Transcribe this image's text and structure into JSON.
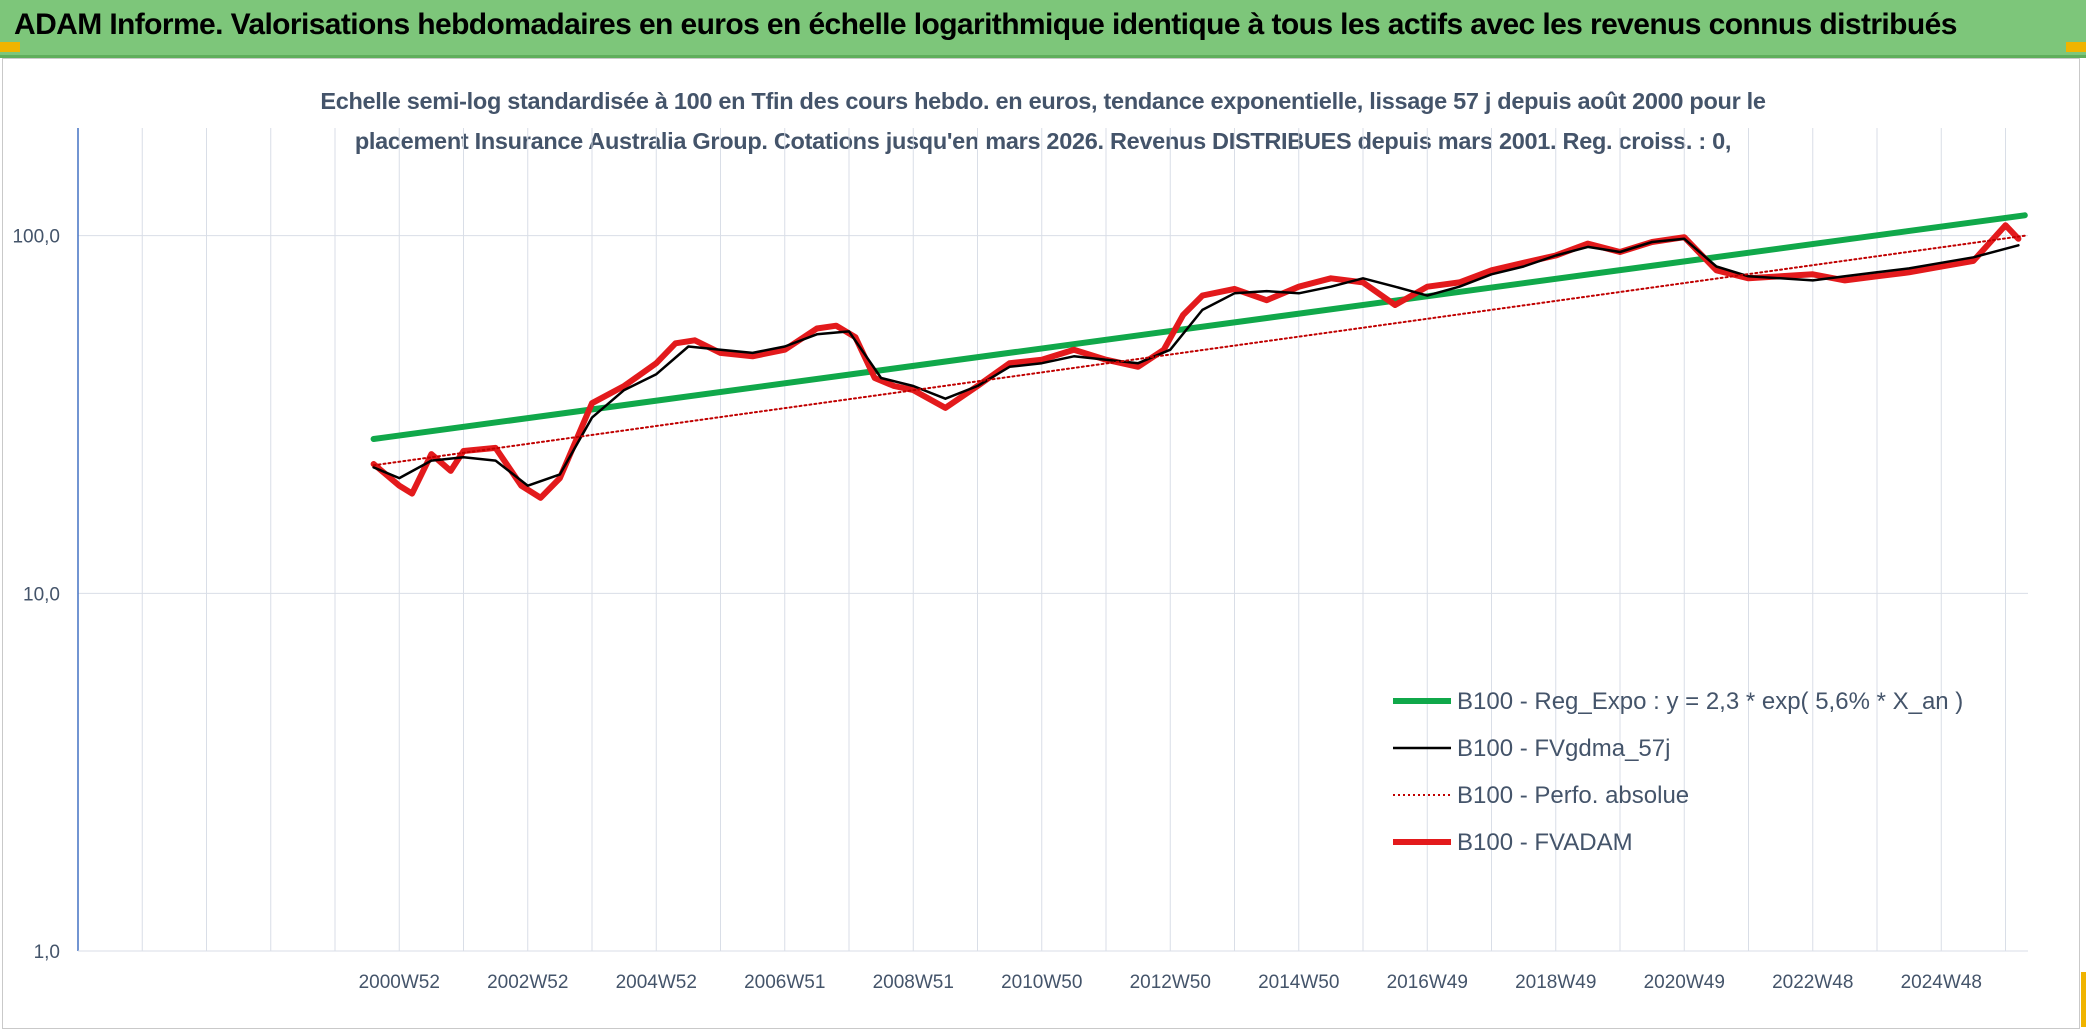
{
  "header": {
    "title": "ADAM Informe. Valorisations hebdomadaires en euros en échelle logarithmique identique à tous les actifs avec les revenus connus distribués"
  },
  "chart_data": {
    "type": "line",
    "subtitle_line1": "Echelle semi-log standardisée à 100 en Tfin des cours hebdo. en euros, tendance exponentielle, lissage 57 j depuis août 2000 pour le",
    "subtitle_line2": "placement Insurance Australia Group. Cotations jusqu'en mars 2026. Revenus DISTRIBUES depuis mars 2001. Reg. croiss. : 0,",
    "y_scale": "log",
    "ylim": [
      1,
      200
    ],
    "y_ticks": [
      {
        "value": 1,
        "label": "1,0"
      },
      {
        "value": 10,
        "label": "10,0"
      },
      {
        "value": 100,
        "label": "100,0"
      }
    ],
    "x_tick_labels": [
      "2000W52",
      "2002W52",
      "2004W52",
      "2006W51",
      "2008W51",
      "2010W50",
      "2012W50",
      "2014W50",
      "2016W49",
      "2018W49",
      "2020W49",
      "2022W48",
      "2024W48"
    ],
    "x_tick_years": [
      2001,
      2003,
      2005,
      2007,
      2009,
      2011,
      2013,
      2015,
      2017,
      2019,
      2021,
      2023,
      2025
    ],
    "xlim": [
      1996.0,
      2026.35
    ],
    "grid": true,
    "legend_position": "bottom-right",
    "series": [
      {
        "name": "B100 - Reg_Expo : y = 2,3 * exp( 5,6% *  X_an )",
        "color": "#10a84a",
        "style": "solid-thick",
        "x": [
          2000.6,
          2026.3
        ],
        "y": [
          27.0,
          114.0
        ]
      },
      {
        "name": "B100 - FVgdma_57j",
        "color": "#000000",
        "style": "solid",
        "x": [
          2000.6,
          2001.0,
          2001.5,
          2002.0,
          2002.5,
          2003.0,
          2003.5,
          2004.0,
          2004.5,
          2005.0,
          2005.5,
          2006.0,
          2006.5,
          2007.0,
          2007.5,
          2008.0,
          2008.5,
          2009.0,
          2009.5,
          2010.0,
          2010.5,
          2011.0,
          2011.5,
          2012.0,
          2012.5,
          2013.0,
          2013.5,
          2014.0,
          2014.5,
          2015.0,
          2015.5,
          2016.0,
          2016.5,
          2017.0,
          2017.5,
          2018.0,
          2018.5,
          2019.0,
          2019.5,
          2020.0,
          2020.5,
          2021.0,
          2021.5,
          2022.0,
          2022.5,
          2023.0,
          2023.5,
          2024.0,
          2024.5,
          2025.0,
          2025.5,
          2026.2
        ],
        "y": [
          22.5,
          21.0,
          23.5,
          24.0,
          23.5,
          20.0,
          21.5,
          31.0,
          37.0,
          41.0,
          49.0,
          48.0,
          47.0,
          49.0,
          53.0,
          54.0,
          40.0,
          38.0,
          35.0,
          38.0,
          43.0,
          44.0,
          46.0,
          45.0,
          44.0,
          48.0,
          62.0,
          69.0,
          70.0,
          69.0,
          72.0,
          76.0,
          72.0,
          68.0,
          72.0,
          78.0,
          82.0,
          88.0,
          93.0,
          90.0,
          96.0,
          98.0,
          82.0,
          77.0,
          76.0,
          75.0,
          77.0,
          79.0,
          81.0,
          84.0,
          87.0,
          94.0
        ]
      },
      {
        "name": "B100 - Perfo. absolue",
        "color": "#c00000",
        "style": "dotted",
        "x": [
          2000.6,
          2026.3
        ],
        "y": [
          22.8,
          100.0
        ]
      },
      {
        "name": "B100 - FVADAM",
        "color": "#e31a1c",
        "style": "solid-thick",
        "x": [
          2000.6,
          2001.0,
          2001.2,
          2001.5,
          2001.8,
          2002.0,
          2002.5,
          2002.9,
          2003.2,
          2003.5,
          2004.0,
          2004.5,
          2005.0,
          2005.3,
          2005.6,
          2006.0,
          2006.5,
          2007.0,
          2007.5,
          2007.8,
          2008.1,
          2008.4,
          2008.7,
          2009.0,
          2009.5,
          2010.0,
          2010.5,
          2011.0,
          2011.5,
          2012.0,
          2012.5,
          2012.9,
          2013.2,
          2013.5,
          2014.0,
          2014.5,
          2015.0,
          2015.5,
          2016.0,
          2016.5,
          2017.0,
          2017.5,
          2018.0,
          2018.5,
          2019.0,
          2019.5,
          2020.0,
          2020.5,
          2021.0,
          2021.5,
          2022.0,
          2022.5,
          2023.0,
          2023.5,
          2024.0,
          2024.5,
          2025.0,
          2025.5,
          2026.0,
          2026.2
        ],
        "y": [
          23.0,
          20.0,
          19.0,
          24.5,
          22.0,
          25.0,
          25.5,
          20.0,
          18.5,
          21.0,
          34.0,
          38.0,
          44.0,
          50.0,
          51.0,
          47.0,
          46.0,
          48.0,
          55.0,
          56.0,
          52.0,
          40.0,
          38.0,
          37.0,
          33.0,
          38.0,
          44.0,
          45.0,
          48.0,
          45.0,
          43.0,
          48.0,
          60.0,
          68.0,
          71.0,
          66.0,
          72.0,
          76.0,
          74.0,
          64.0,
          72.0,
          74.0,
          80.0,
          84.0,
          88.0,
          95.0,
          90.0,
          96.0,
          99.0,
          80.0,
          76.0,
          77.0,
          78.0,
          75.0,
          77.0,
          79.0,
          82.0,
          85.0,
          107.0,
          98.0
        ]
      }
    ]
  }
}
